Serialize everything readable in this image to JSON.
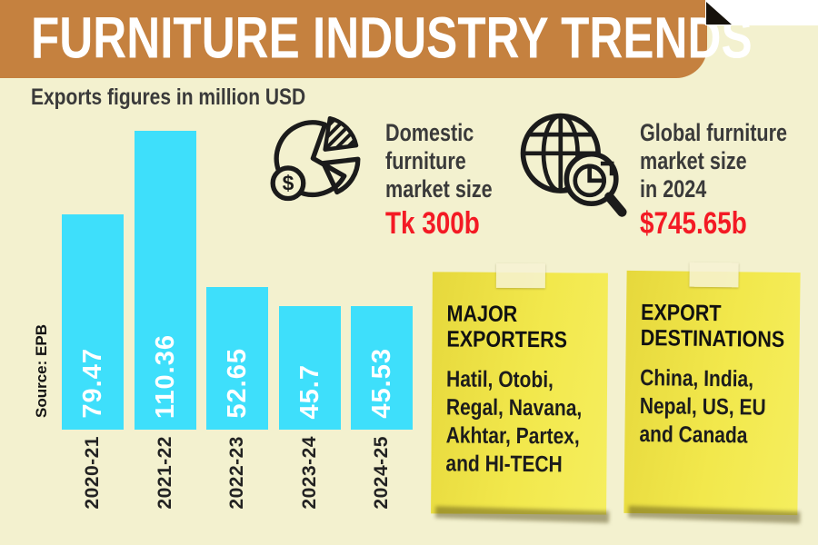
{
  "header": {
    "title": "FURNITURE INDUSTRY TRENDS"
  },
  "subtitle": "Exports figures in million USD",
  "source_label": "Source: EPB",
  "chart_data": {
    "type": "bar",
    "title": "FURNITURE INDUSTRY TRENDS",
    "subtitle": "Exports figures in million USD",
    "unit": "million USD",
    "categories": [
      "2020-21",
      "2021-22",
      "2022-23",
      "2023-24",
      "2024-25"
    ],
    "values": [
      79.47,
      110.36,
      52.65,
      45.7,
      45.53
    ],
    "value_labels": [
      "79.47",
      "110.36",
      "52.65",
      "45.7",
      "45.53"
    ],
    "source": "Source: EPB",
    "ylim": [
      0,
      115
    ],
    "grid": false,
    "legend": false,
    "bar_color": "#3edffb",
    "value_label_color": "#ffffff"
  },
  "stats": [
    {
      "icon": "pie-dollar-icon",
      "lines": [
        "Domestic",
        "furniture",
        "market size"
      ],
      "value": "Tk 300b"
    },
    {
      "icon": "globe-magnifier-icon",
      "lines": [
        "Global furniture",
        "market size",
        "in 2024"
      ],
      "value": "$745.65b"
    }
  ],
  "notes": [
    {
      "title_lines": [
        "MAJOR",
        "EXPORTERS"
      ],
      "body_lines": [
        "Hatil, Otobi,",
        "Regal, Navana,",
        "Akhtar, Partex,",
        "and HI-TECH"
      ]
    },
    {
      "title_lines": [
        "EXPORT",
        "DESTINATIONS"
      ],
      "body_lines": [
        "China, India,",
        "Nepal, US, EU",
        "and Canada"
      ]
    }
  ],
  "icons": {
    "dollar_sign": "$"
  },
  "colors": {
    "background": "#f3f1cf",
    "banner": "#c5813f",
    "title_text": "#ffffff",
    "bar": "#3edffb",
    "accent_red": "#f31a24",
    "note_yellow": "#f2e84c",
    "text_dark": "#3a3a3a"
  }
}
